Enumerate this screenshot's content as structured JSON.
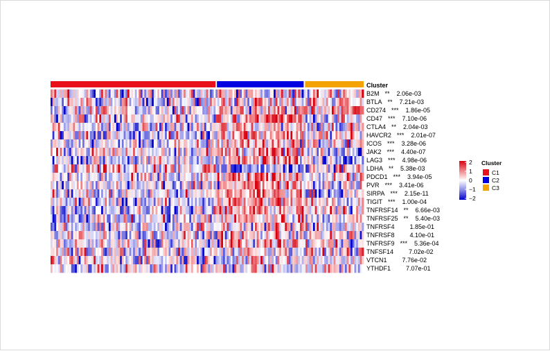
{
  "chart_data": {
    "type": "heatmap",
    "cluster_title": "Cluster",
    "clusters": [
      {
        "name": "C1",
        "color": "#e8101a",
        "count": 88
      },
      {
        "name": "C2",
        "color": "#0000e0",
        "count": 47
      },
      {
        "name": "C3",
        "color": "#f5a300",
        "count": 32
      }
    ],
    "rows": [
      {
        "gene": "B2M",
        "sig": "**",
        "p": "2.06e-03"
      },
      {
        "gene": "BTLA",
        "sig": "**",
        "p": "7.21e-03"
      },
      {
        "gene": "CD274",
        "sig": "***",
        "p": "1.86e-05"
      },
      {
        "gene": "CD47",
        "sig": "***",
        "p": "7.10e-06"
      },
      {
        "gene": "CTLA4",
        "sig": "**",
        "p": "2.04e-03"
      },
      {
        "gene": "HAVCR2",
        "sig": "***",
        "p": "2.01e-07"
      },
      {
        "gene": "ICOS",
        "sig": "***",
        "p": "3.28e-06"
      },
      {
        "gene": "JAK2",
        "sig": "***",
        "p": "4.40e-07"
      },
      {
        "gene": "LAG3",
        "sig": "***",
        "p": "4.98e-06"
      },
      {
        "gene": "LDHA",
        "sig": "**",
        "p": "5.38e-03"
      },
      {
        "gene": "PDCD1",
        "sig": "***",
        "p": "3.94e-05"
      },
      {
        "gene": "PVR",
        "sig": "***",
        "p": "3.41e-06"
      },
      {
        "gene": "SIRPA",
        "sig": "***",
        "p": "2.15e-11"
      },
      {
        "gene": "TIGIT",
        "sig": "***",
        "p": "1.00e-04"
      },
      {
        "gene": "TNFRSF14",
        "sig": "**",
        "p": "6.66e-03"
      },
      {
        "gene": "TNFRSF25",
        "sig": "**",
        "p": "5.40e-03"
      },
      {
        "gene": "TNFRSF4",
        "sig": "",
        "p": "1.85e-01"
      },
      {
        "gene": "TNFRSF8",
        "sig": "",
        "p": "4.10e-01"
      },
      {
        "gene": "TNFRSF9",
        "sig": "***",
        "p": "5.36e-04"
      },
      {
        "gene": "TNFSF14",
        "sig": "",
        "p": "7.02e-02"
      },
      {
        "gene": "VTCN1",
        "sig": "",
        "p": "7.76e-02"
      },
      {
        "gene": "YTHDF1",
        "sig": "",
        "p": "7.07e-01"
      }
    ],
    "row_trends": [
      [
        0.0,
        0.0,
        0.4
      ],
      [
        -0.3,
        0.5,
        0.4
      ],
      [
        -0.2,
        0.1,
        0.9
      ],
      [
        0.1,
        0.9,
        -0.1
      ],
      [
        -0.3,
        0.4,
        0.2
      ],
      [
        -0.4,
        0.9,
        0.1
      ],
      [
        -0.3,
        0.6,
        0.0
      ],
      [
        0.2,
        0.6,
        -0.6
      ],
      [
        -0.3,
        0.7,
        -0.2
      ],
      [
        0.5,
        -0.9,
        0.3
      ],
      [
        -0.3,
        0.7,
        0.3
      ],
      [
        -0.3,
        0.9,
        0.0
      ],
      [
        -0.2,
        0.8,
        -0.4
      ],
      [
        -0.3,
        0.7,
        0.1
      ],
      [
        -0.3,
        0.6,
        0.1
      ],
      [
        -0.2,
        0.5,
        0.0
      ],
      [
        -0.1,
        0.3,
        0.0
      ],
      [
        -0.1,
        0.3,
        0.0
      ],
      [
        -0.2,
        0.5,
        0.2
      ],
      [
        -0.1,
        0.3,
        0.1
      ],
      [
        0.0,
        0.0,
        0.1
      ],
      [
        -0.1,
        0.1,
        0.1
      ]
    ],
    "color_scale": {
      "breaks": [
        -2,
        -1,
        0,
        1,
        2
      ],
      "colors": [
        "#0000cc",
        "#8a8ce6",
        "#ffffff",
        "#ee8488",
        "#d7000f"
      ],
      "tick_labels": [
        "2",
        "1",
        "0",
        "−1",
        "−2"
      ]
    }
  }
}
